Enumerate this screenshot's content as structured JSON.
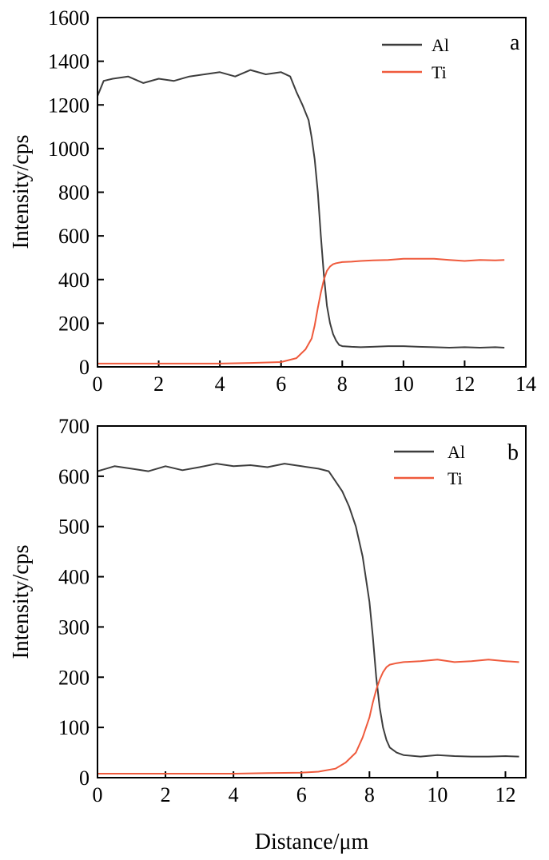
{
  "figure": {
    "xlabel": "Distance/μm"
  },
  "chart_data": [
    {
      "type": "line",
      "panel_label": "a",
      "xlim": [
        0,
        14
      ],
      "ylim": [
        0,
        1600
      ],
      "ylabel": "Intensity/cps",
      "x_ticks": [
        0,
        2,
        4,
        6,
        8,
        10,
        12,
        14
      ],
      "y_ticks": [
        0,
        200,
        400,
        600,
        800,
        1000,
        1200,
        1400,
        1600
      ],
      "legend_position": "top-right",
      "series": [
        {
          "name": "Al",
          "color": "#3d3d3d",
          "x": [
            0,
            0.2,
            0.5,
            1.0,
            1.5,
            2.0,
            2.5,
            3.0,
            3.5,
            4.0,
            4.5,
            5.0,
            5.5,
            6.0,
            6.3,
            6.5,
            6.7,
            6.9,
            7.0,
            7.1,
            7.2,
            7.3,
            7.4,
            7.5,
            7.6,
            7.7,
            7.8,
            7.9,
            8.0,
            8.3,
            8.6,
            9.0,
            9.5,
            10.0,
            10.5,
            11.0,
            11.5,
            12.0,
            12.5,
            13.0,
            13.3
          ],
          "y": [
            1240,
            1310,
            1320,
            1330,
            1300,
            1320,
            1310,
            1330,
            1340,
            1350,
            1330,
            1360,
            1340,
            1350,
            1330,
            1260,
            1200,
            1130,
            1050,
            950,
            800,
            600,
            420,
            280,
            200,
            150,
            120,
            100,
            95,
            92,
            90,
            92,
            95,
            95,
            92,
            90,
            88,
            90,
            88,
            90,
            88
          ]
        },
        {
          "name": "Ti",
          "color": "#ef5a3c",
          "x": [
            0,
            1.0,
            2.0,
            3.0,
            4.0,
            5.0,
            6.0,
            6.5,
            6.8,
            7.0,
            7.1,
            7.2,
            7.3,
            7.4,
            7.5,
            7.6,
            7.7,
            7.8,
            8.0,
            8.3,
            8.6,
            9.0,
            9.5,
            10.0,
            10.5,
            11.0,
            11.5,
            12.0,
            12.5,
            13.0,
            13.3
          ],
          "y": [
            15,
            15,
            15,
            15,
            15,
            18,
            22,
            40,
            80,
            130,
            190,
            270,
            340,
            400,
            440,
            460,
            470,
            475,
            480,
            482,
            485,
            488,
            490,
            495,
            495,
            495,
            490,
            485,
            490,
            488,
            490
          ]
        }
      ]
    },
    {
      "type": "line",
      "panel_label": "b",
      "xlim": [
        0,
        12.6
      ],
      "ylim": [
        0,
        700
      ],
      "ylabel": "Intensity/cps",
      "x_ticks": [
        0,
        2,
        4,
        6,
        8,
        10,
        12
      ],
      "y_ticks": [
        0,
        100,
        200,
        300,
        400,
        500,
        600,
        700
      ],
      "legend_position": "top-right",
      "series": [
        {
          "name": "Al",
          "color": "#3d3d3d",
          "x": [
            0,
            0.5,
            1.0,
            1.5,
            2.0,
            2.5,
            3.0,
            3.5,
            4.0,
            4.5,
            5.0,
            5.5,
            6.0,
            6.5,
            6.8,
            7.0,
            7.2,
            7.4,
            7.6,
            7.8,
            8.0,
            8.1,
            8.2,
            8.3,
            8.4,
            8.5,
            8.6,
            8.8,
            9.0,
            9.5,
            10.0,
            10.5,
            11.0,
            11.5,
            12.0,
            12.4
          ],
          "y": [
            610,
            620,
            615,
            610,
            620,
            612,
            618,
            625,
            620,
            622,
            618,
            625,
            620,
            615,
            610,
            590,
            570,
            540,
            500,
            440,
            350,
            280,
            200,
            140,
            100,
            75,
            60,
            50,
            45,
            42,
            45,
            43,
            42,
            42,
            43,
            42
          ]
        },
        {
          "name": "Ti",
          "color": "#ef5a3c",
          "x": [
            0,
            1.0,
            2.0,
            3.0,
            4.0,
            5.0,
            6.0,
            6.5,
            7.0,
            7.3,
            7.6,
            7.8,
            8.0,
            8.1,
            8.2,
            8.3,
            8.4,
            8.5,
            8.6,
            8.8,
            9.0,
            9.5,
            10.0,
            10.5,
            11.0,
            11.5,
            12.0,
            12.4
          ],
          "y": [
            8,
            8,
            8,
            8,
            8,
            9,
            10,
            12,
            18,
            30,
            50,
            80,
            120,
            150,
            175,
            195,
            210,
            220,
            225,
            228,
            230,
            232,
            235,
            230,
            232,
            235,
            232,
            230
          ]
        }
      ]
    }
  ]
}
